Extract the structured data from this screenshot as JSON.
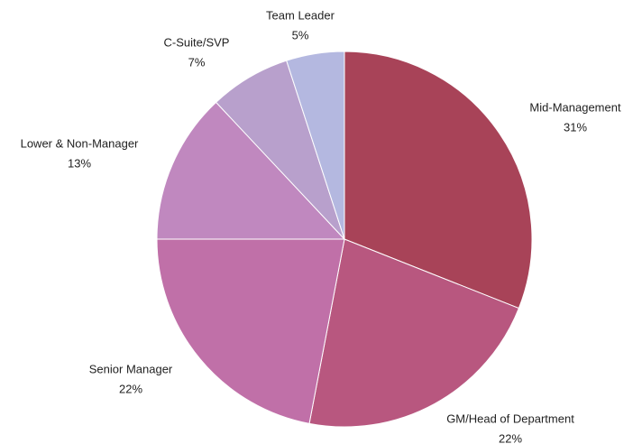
{
  "chart_data": {
    "type": "pie",
    "categories": [
      "Mid-Management",
      "GM/Head of Department",
      "Senior Manager",
      "Lower & Non-Manager",
      "C-Suite/SVP",
      "Team Leader"
    ],
    "values": [
      31,
      22,
      22,
      13,
      7,
      5
    ],
    "value_labels": [
      "31%",
      "22%",
      "22%",
      "13%",
      "7%",
      "5%"
    ],
    "colors": [
      "#a84358",
      "#b8577f",
      "#c070a8",
      "#c088bf",
      "#b8a0cc",
      "#b4b8e0"
    ]
  }
}
